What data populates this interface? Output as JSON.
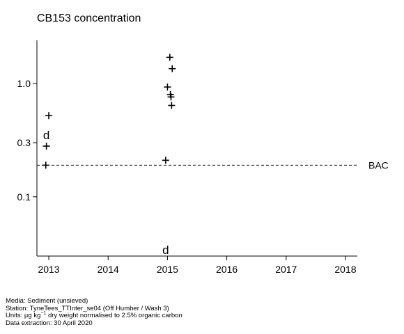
{
  "chart_data": {
    "type": "scatter",
    "title": "CB153 concentration",
    "xlabel": "",
    "ylabel": "",
    "y_scale": "log",
    "xlim": [
      2012.8,
      2018.2
    ],
    "ylim": [
      0.03,
      2.4
    ],
    "x_ticks": [
      "2013",
      "2014",
      "2015",
      "2016",
      "2017",
      "2018"
    ],
    "y_ticks": [
      "0.1",
      "0.3",
      "1.0"
    ],
    "grid": false,
    "reference_lines": [
      {
        "label": "BAC",
        "value": 0.19,
        "style": "dashed"
      }
    ],
    "points": [
      {
        "x": 2012.95,
        "y": 0.19,
        "marker": "+"
      },
      {
        "x": 2012.96,
        "y": 0.28,
        "marker": "+"
      },
      {
        "x": 2012.96,
        "y": 0.35,
        "marker": "d"
      },
      {
        "x": 2013.0,
        "y": 0.52,
        "marker": "+"
      },
      {
        "x": 2014.97,
        "y": 0.21,
        "marker": "+"
      },
      {
        "x": 2014.97,
        "y": 0.034,
        "marker": "d"
      },
      {
        "x": 2015.04,
        "y": 1.7,
        "marker": "+"
      },
      {
        "x": 2015.08,
        "y": 1.35,
        "marker": "+"
      },
      {
        "x": 2015.0,
        "y": 0.93,
        "marker": "+"
      },
      {
        "x": 2015.05,
        "y": 0.8,
        "marker": "+"
      },
      {
        "x": 2015.06,
        "y": 0.76,
        "marker": "+"
      },
      {
        "x": 2015.07,
        "y": 0.64,
        "marker": "+"
      }
    ]
  },
  "footer": {
    "media": "Media: Sediment (unsieved)",
    "station": "Station: TyneTees_TTInter_se04 (Off Humber / Wash 3)",
    "units_prefix": "Units:  µg kg",
    "units_sup": "−1",
    "units_suffix": " dry weight normalised to 2.5% organic carbon",
    "extraction": "Data extraction: 30 April 2020"
  }
}
